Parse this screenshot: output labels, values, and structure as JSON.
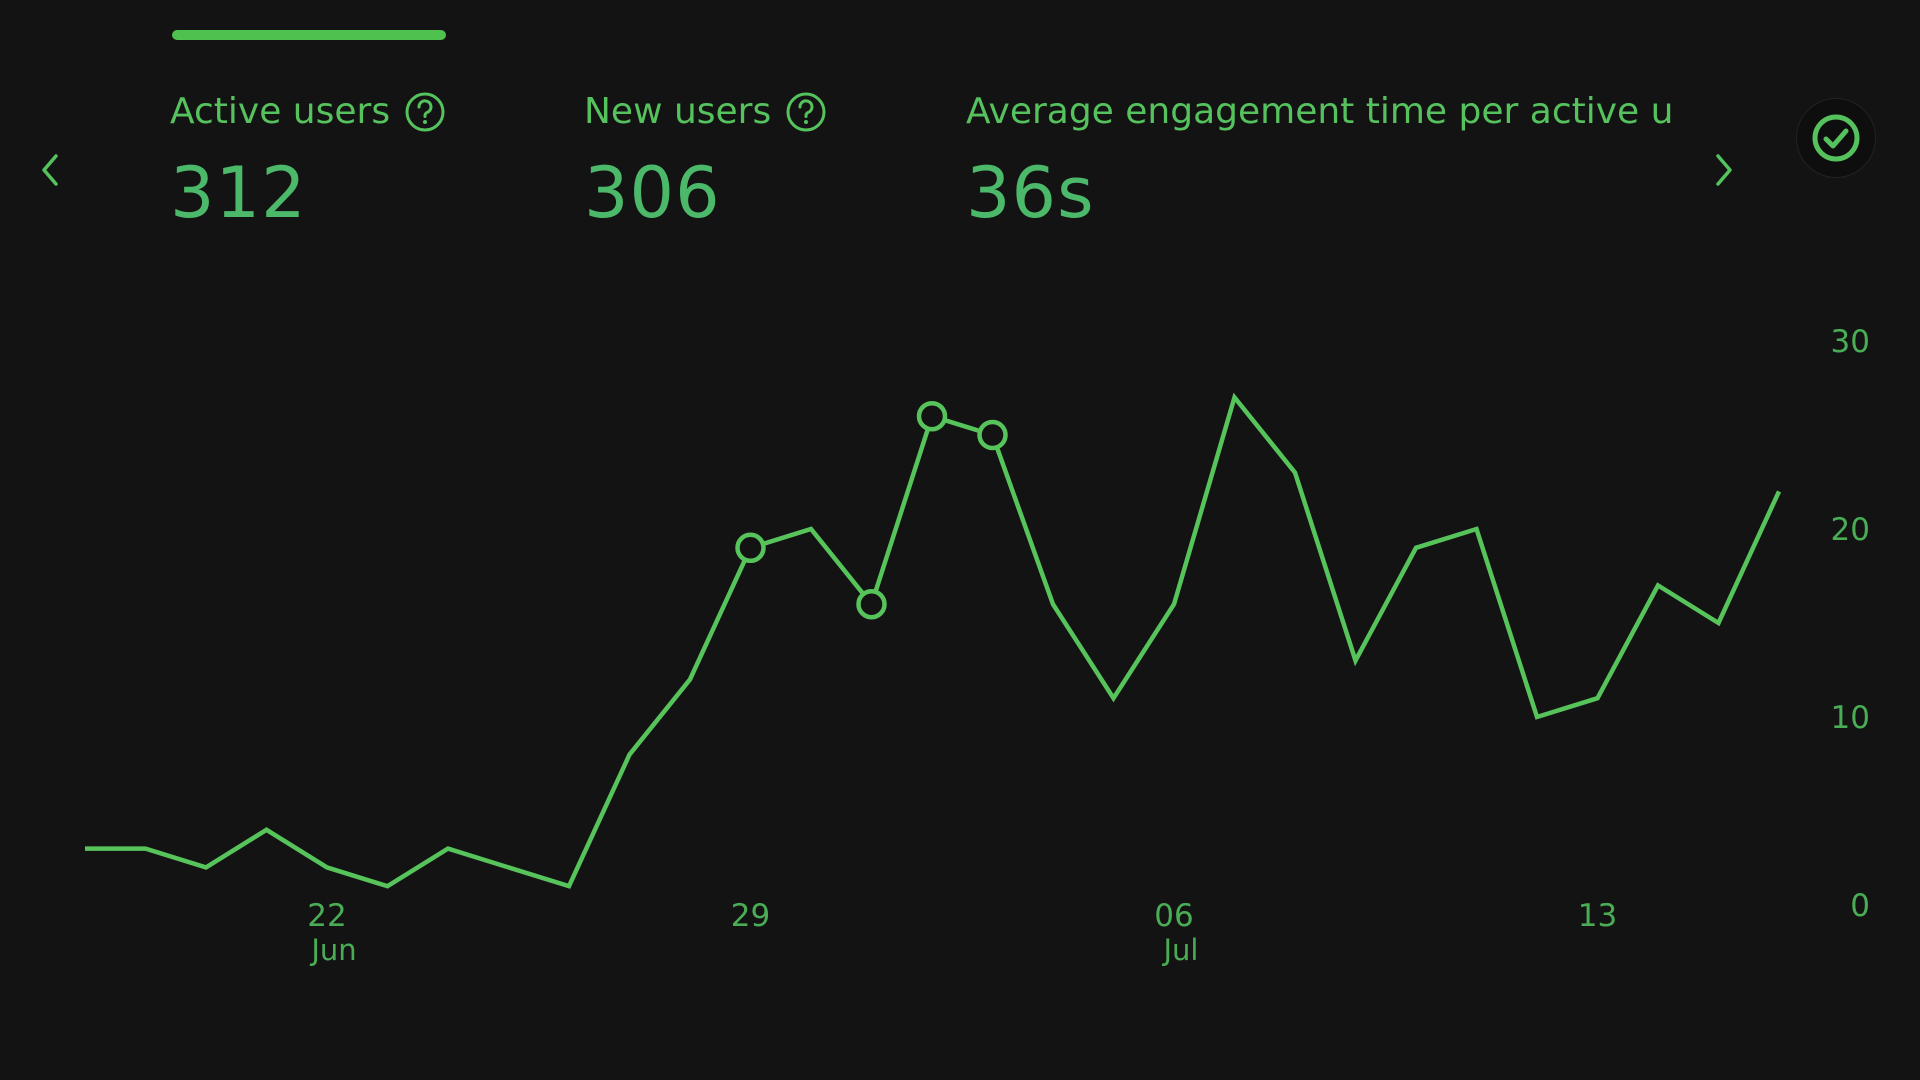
{
  "colors": {
    "background": "#131313",
    "accent": "#4fc14f",
    "line": "#57c45b",
    "text": "#4fbd58"
  },
  "metrics": [
    {
      "label": "Active users",
      "value": "312",
      "has_help_icon": true
    },
    {
      "label": "New users",
      "value": "306",
      "has_help_icon": true
    },
    {
      "label": "Average engagement time per active us",
      "value": "36s",
      "has_help_icon": false
    }
  ],
  "icons": {
    "prev": "chevron-left-icon",
    "next": "chevron-right-icon",
    "help": "help-circle-icon",
    "status": "check-circle-icon"
  },
  "chart_data": {
    "type": "line",
    "y_axis_position": "right",
    "ylim": [
      0,
      30
    ],
    "y_ticks": [
      0,
      10,
      20,
      30
    ],
    "x_tick_labels": [
      {
        "index": 4,
        "day": "22",
        "month": "Jun"
      },
      {
        "index": 11,
        "day": "29",
        "month": ""
      },
      {
        "index": 18,
        "day": "06",
        "month": "Jul"
      },
      {
        "index": 25,
        "day": "13",
        "month": ""
      }
    ],
    "series": [
      {
        "values": [
          3,
          3,
          2,
          4,
          2,
          1,
          3,
          2,
          1,
          8,
          12,
          19,
          20,
          16,
          26,
          25,
          16,
          11,
          16,
          27,
          23,
          13,
          19,
          20,
          10,
          11,
          17,
          15,
          22
        ],
        "marked_points": [
          11,
          13,
          14,
          15
        ]
      }
    ]
  }
}
